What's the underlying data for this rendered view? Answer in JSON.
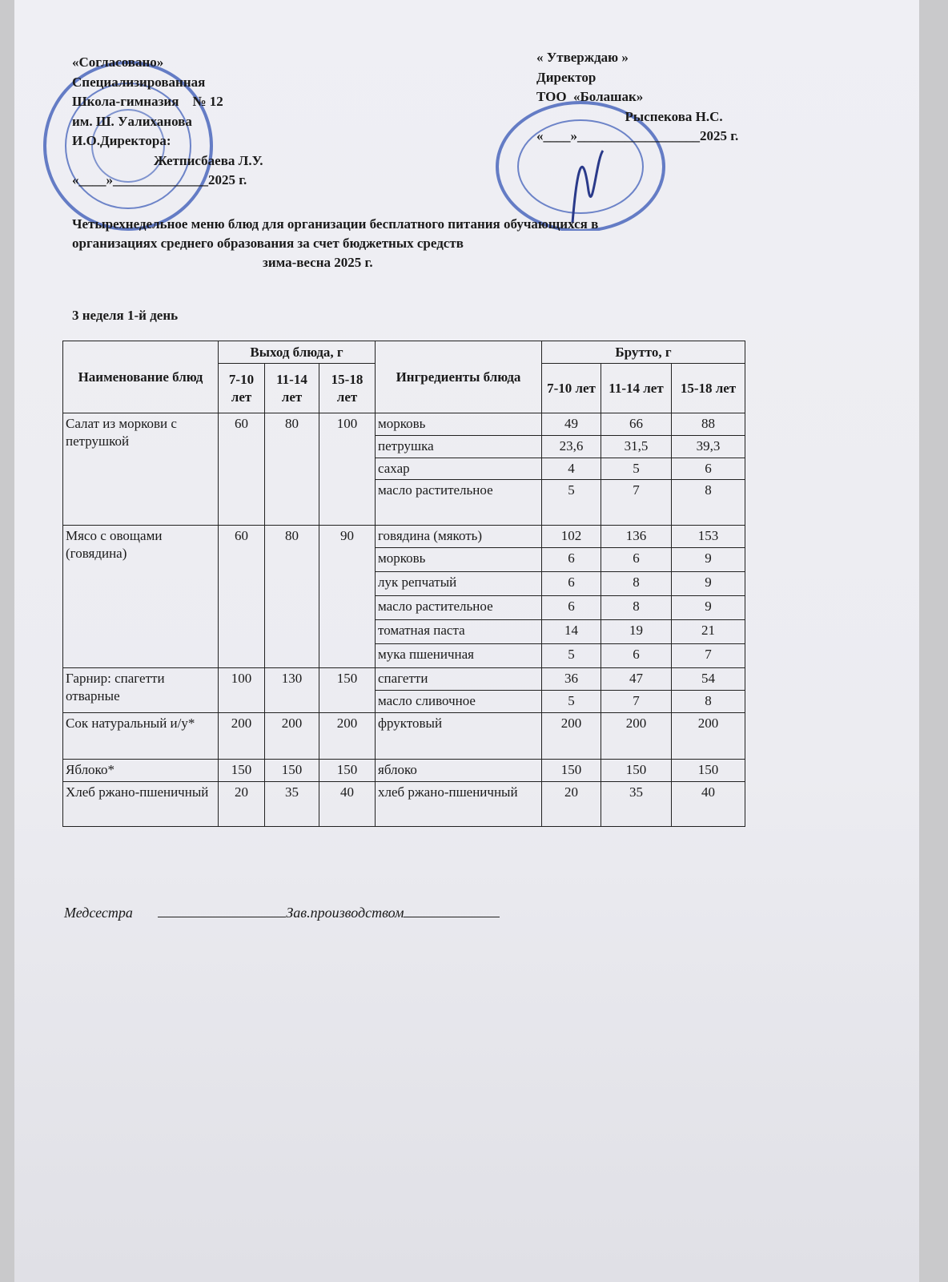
{
  "approval_left": [
    "«Согласовано»",
    "Специализированная",
    "Школа-гимназия    № 12",
    "им. Ш. Уалиханова",
    "И.О.Директора:",
    "                        Жетписбаева Л.У.",
    "«____»______________2025 г."
  ],
  "approval_right": [
    "« Утверждаю »",
    "Директор",
    "ТОО  «Болашак»",
    "                          Рыспекова Н.С.",
    "«____»__________________2025 г."
  ],
  "title": {
    "lines": [
      "Четырехнедельное меню блюд для организации бесплатного питания обучающихся в",
      "организациях среднего образования за счет бюджетных средств"
    ],
    "season": "зима-весна 2025 г."
  },
  "day": "3 неделя 1-й день",
  "table": {
    "header": {
      "dish": "Наименование блюд",
      "yield": "Выход блюда, г",
      "ingredients": "Ингредиенты блюда",
      "gross": "Брутто, г",
      "ages": [
        "7-10 лет",
        "11-14 лет",
        "15-18 лет"
      ]
    },
    "dishes": [
      {
        "name": "Салат из моркови с петрушкой",
        "yield": [
          "60",
          "80",
          "100"
        ],
        "ingredients": [
          {
            "name": "морковь",
            "gross": [
              "49",
              "66",
              "88"
            ]
          },
          {
            "name": "петрушка",
            "gross": [
              "23,6",
              "31,5",
              "39,3"
            ]
          },
          {
            "name": "сахар",
            "gross": [
              "4",
              "5",
              "6"
            ]
          },
          {
            "name": "масло растительное",
            "gross": [
              "5",
              "7",
              "8"
            ]
          }
        ]
      },
      {
        "name": "Мясо с овощами (говядина)",
        "yield": [
          "60",
          "80",
          "90"
        ],
        "ingredients": [
          {
            "name": "говядина (мякоть)",
            "gross": [
              "102",
              "136",
              "153"
            ]
          },
          {
            "name": "морковь",
            "gross": [
              "6",
              "6",
              "9"
            ]
          },
          {
            "name": "лук репчатый",
            "gross": [
              "6",
              "8",
              "9"
            ]
          },
          {
            "name": "масло растительное",
            "gross": [
              "6",
              "8",
              "9"
            ]
          },
          {
            "name": "томатная паста",
            "gross": [
              "14",
              "19",
              "21"
            ]
          },
          {
            "name": "мука пшеничная",
            "gross": [
              "5",
              "6",
              "7"
            ]
          }
        ]
      },
      {
        "name": "Гарнир: спагетти отварные",
        "yield": [
          "100",
          "130",
          "150"
        ],
        "ingredients": [
          {
            "name": "спагетти",
            "gross": [
              "36",
              "47",
              "54"
            ]
          },
          {
            "name": "масло сливочное",
            "gross": [
              "5",
              "7",
              "8"
            ]
          }
        ]
      },
      {
        "name": "Сок натуральный и/у*",
        "yield": [
          "200",
          "200",
          "200"
        ],
        "ingredients": [
          {
            "name": "фруктовый",
            "gross": [
              "200",
              "200",
              "200"
            ]
          }
        ]
      },
      {
        "name": "Яблоко*",
        "yield": [
          "150",
          "150",
          "150"
        ],
        "ingredients": [
          {
            "name": "яблоко",
            "gross": [
              "150",
              "150",
              "150"
            ]
          }
        ]
      },
      {
        "name": "Хлеб ржано-пшеничный",
        "yield": [
          "20",
          "35",
          "40"
        ],
        "ingredients": [
          {
            "name": "хлеб ржано-пшеничный",
            "gross": [
              "20",
              "35",
              "40"
            ]
          }
        ]
      }
    ]
  },
  "footer": [
    "Медсестра",
    "Зав.производством"
  ]
}
